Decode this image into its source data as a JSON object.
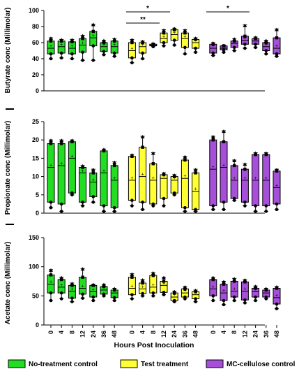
{
  "colors": {
    "no_treatment": "#22dd22",
    "test_treatment": "#ffff33",
    "mc_cellulose": "#a64fd8",
    "ink": "#000000"
  },
  "legend": {
    "items": [
      {
        "label": "No-treatment control",
        "color_key": "no_treatment"
      },
      {
        "label": "Test treatment",
        "color_key": "test_treatment"
      },
      {
        "label": "MC-cellulose control",
        "color_key": "mc_cellulose"
      }
    ]
  },
  "xaxis": {
    "label": "Hours Post Inoculation",
    "tick_labels": [
      "0",
      "4",
      "8",
      "12",
      "24",
      "36",
      "48",
      "0",
      "4",
      "8",
      "12",
      "24",
      "36",
      "48",
      "0",
      "4",
      "8",
      "12",
      "24",
      "36",
      "48"
    ]
  },
  "chart_data": [
    {
      "type": "box",
      "ylabel": "Butyrate conc (Millimolar)",
      "ylim": [
        0,
        100
      ],
      "yticks": [
        0,
        20,
        40,
        60,
        80,
        100
      ],
      "significance": [
        {
          "label": "*",
          "from": "Test treatment 0 h",
          "to": "Test treatment 24 h"
        },
        {
          "label": "**",
          "from": "Test treatment 0 h",
          "to": "Test treatment 12 h"
        },
        {
          "label": "*",
          "from": "MC-cellulose control 0 h",
          "to": "MC-cellulose control 24 h"
        }
      ],
      "groups": [
        {
          "group": "No-treatment control",
          "color_key": "no_treatment",
          "boxes": [
            {
              "x": "0",
              "min": 40,
              "q1": 46,
              "median": 53,
              "q3": 62,
              "max": 66
            },
            {
              "x": "4",
              "min": 41,
              "q1": 47,
              "median": 55,
              "q3": 62,
              "max": 64
            },
            {
              "x": "8",
              "min": 40,
              "q1": 46,
              "median": 53,
              "q3": 61,
              "max": 64
            },
            {
              "x": "12",
              "min": 38,
              "q1": 48,
              "median": 57,
              "q3": 65,
              "max": 69
            },
            {
              "x": "24",
              "min": 38,
              "q1": 56,
              "median": 66,
              "q3": 74,
              "max": 83
            },
            {
              "x": "36",
              "min": 45,
              "q1": 49,
              "median": 55,
              "q3": 60,
              "max": 63
            },
            {
              "x": "48",
              "min": 43,
              "q1": 47,
              "median": 55,
              "q3": 62,
              "max": 65
            }
          ]
        },
        {
          "group": "Test treatment",
          "color_key": "test_treatment",
          "boxes": [
            {
              "x": "0",
              "min": 35,
              "q1": 41,
              "median": 50,
              "q3": 60,
              "max": 64
            },
            {
              "x": "4",
              "min": 40,
              "q1": 47,
              "median": 55,
              "q3": 60,
              "max": 62
            },
            {
              "x": "8",
              "min": 55,
              "q1": 56,
              "median": 57,
              "q3": 58,
              "max": 59
            },
            {
              "x": "12",
              "min": 56,
              "q1": 60,
              "median": 65,
              "q3": 72,
              "max": 76
            },
            {
              "x": "24",
              "min": 57,
              "q1": 63,
              "median": 70,
              "q3": 76,
              "max": 78
            },
            {
              "x": "36",
              "min": 46,
              "q1": 54,
              "median": 65,
              "q3": 72,
              "max": 76
            },
            {
              "x": "48",
              "min": 48,
              "q1": 53,
              "median": 60,
              "q3": 64,
              "max": 66
            }
          ]
        },
        {
          "group": "MC-cellulose control",
          "color_key": "mc_cellulose",
          "boxes": [
            {
              "x": "0",
              "min": 44,
              "q1": 47,
              "median": 53,
              "q3": 58,
              "max": 60
            },
            {
              "x": "4",
              "min": 48,
              "q1": 51,
              "median": 53,
              "q3": 56,
              "max": 57
            },
            {
              "x": "8",
              "min": 50,
              "q1": 54,
              "median": 59,
              "q3": 62,
              "max": 65
            },
            {
              "x": "12",
              "min": 53,
              "q1": 58,
              "median": 63,
              "q3": 68,
              "max": 82
            },
            {
              "x": "24",
              "min": 54,
              "q1": 58,
              "median": 62,
              "q3": 65,
              "max": 67
            },
            {
              "x": "36",
              "min": 46,
              "q1": 50,
              "median": 55,
              "q3": 60,
              "max": 63
            },
            {
              "x": "48",
              "min": 43,
              "q1": 46,
              "median": 53,
              "q3": 66,
              "max": 77
            }
          ]
        }
      ]
    },
    {
      "type": "box",
      "ylabel": "Propionate conc (Millimolar)",
      "ylim": [
        0,
        25
      ],
      "yticks": [
        0,
        5,
        10,
        15,
        20,
        25
      ],
      "groups": [
        {
          "group": "No-treatment control",
          "color_key": "no_treatment",
          "boxes": [
            {
              "x": "0",
              "min": 1.5,
              "q1": 3.0,
              "median": 12.5,
              "q3": 19.0,
              "max": 20.0
            },
            {
              "x": "4",
              "min": 0.5,
              "q1": 2.5,
              "median": 13.0,
              "q3": 19.0,
              "max": 20.0
            },
            {
              "x": "8",
              "min": 5.0,
              "q1": 5.5,
              "median": 15.0,
              "q3": 19.5,
              "max": 20.0
            },
            {
              "x": "12",
              "min": 2.0,
              "q1": 3.0,
              "median": 11.0,
              "q3": 12.5,
              "max": 13.0
            },
            {
              "x": "24",
              "min": 3.0,
              "q1": 4.5,
              "median": 8.5,
              "q3": 11.0,
              "max": 12.0
            },
            {
              "x": "36",
              "min": 0.5,
              "q1": 2.0,
              "median": 11.0,
              "q3": 17.0,
              "max": 17.5
            },
            {
              "x": "48",
              "min": 0.5,
              "q1": 1.5,
              "median": 9.0,
              "q3": 13.0,
              "max": 14.0
            }
          ]
        },
        {
          "group": "Test treatment",
          "color_key": "test_treatment",
          "boxes": [
            {
              "x": "0",
              "min": 2.0,
              "q1": 3.5,
              "median": 9.0,
              "q3": 15.5,
              "max": 16.0
            },
            {
              "x": "4",
              "min": 1.0,
              "q1": 3.0,
              "median": 10.0,
              "q3": 18.0,
              "max": 21.0
            },
            {
              "x": "8",
              "min": 2.0,
              "q1": 2.5,
              "median": 9.0,
              "q3": 13.5,
              "max": 16.5
            },
            {
              "x": "12",
              "min": 2.0,
              "q1": 4.0,
              "median": 9.5,
              "q3": 10.5,
              "max": 11.0
            },
            {
              "x": "24",
              "min": 5.0,
              "q1": 5.5,
              "median": 9.0,
              "q3": 10.0,
              "max": 10.5
            },
            {
              "x": "36",
              "min": 0.5,
              "q1": 1.5,
              "median": 9.5,
              "q3": 14.5,
              "max": 15.5
            },
            {
              "x": "48",
              "min": 0.5,
              "q1": 1.0,
              "median": 6.0,
              "q3": 11.0,
              "max": 12.0
            }
          ]
        },
        {
          "group": "MC-cellulose control",
          "color_key": "mc_cellulose",
          "boxes": [
            {
              "x": "0",
              "min": 1.0,
              "q1": 2.0,
              "median": 12.0,
              "q3": 20.0,
              "max": 21.0
            },
            {
              "x": "4",
              "min": 1.0,
              "q1": 3.0,
              "median": 12.5,
              "q3": 19.5,
              "max": 22.5
            },
            {
              "x": "8",
              "min": 3.5,
              "q1": 4.0,
              "median": 9.0,
              "q3": 13.0,
              "max": 14.5
            },
            {
              "x": "12",
              "min": 2.0,
              "q1": 3.0,
              "median": 9.0,
              "q3": 12.0,
              "max": 13.5
            },
            {
              "x": "24",
              "min": 0.5,
              "q1": 2.0,
              "median": 9.0,
              "q3": 16.0,
              "max": 16.5
            },
            {
              "x": "36",
              "min": 0.5,
              "q1": 2.0,
              "median": 9.0,
              "q3": 16.0,
              "max": 16.5
            },
            {
              "x": "48",
              "min": 1.0,
              "q1": 2.5,
              "median": 7.0,
              "q3": 11.5,
              "max": 12.0
            }
          ]
        }
      ]
    },
    {
      "type": "box",
      "ylabel": "Acetate conc (Millimolar)",
      "ylim": [
        0,
        150
      ],
      "yticks": [
        0,
        50,
        100,
        150
      ],
      "groups": [
        {
          "group": "No-treatment control",
          "color_key": "no_treatment",
          "boxes": [
            {
              "x": "0",
              "min": 42,
              "q1": 55,
              "median": 70,
              "q3": 86,
              "max": 95
            },
            {
              "x": "4",
              "min": 45,
              "q1": 55,
              "median": 65,
              "q3": 78,
              "max": 82
            },
            {
              "x": "8",
              "min": 40,
              "q1": 46,
              "median": 58,
              "q3": 68,
              "max": 72
            },
            {
              "x": "12",
              "min": 46,
              "q1": 53,
              "median": 63,
              "q3": 82,
              "max": 97
            },
            {
              "x": "24",
              "min": 42,
              "q1": 48,
              "median": 57,
              "q3": 68,
              "max": 70
            },
            {
              "x": "36",
              "min": 50,
              "q1": 53,
              "median": 60,
              "q3": 66,
              "max": 70
            },
            {
              "x": "48",
              "min": 42,
              "q1": 47,
              "median": 55,
              "q3": 60,
              "max": 63
            }
          ]
        },
        {
          "group": "Test treatment",
          "color_key": "test_treatment",
          "boxes": [
            {
              "x": "0",
              "min": 45,
              "q1": 52,
              "median": 63,
              "q3": 82,
              "max": 88
            },
            {
              "x": "4",
              "min": 50,
              "q1": 54,
              "median": 62,
              "q3": 72,
              "max": 78
            },
            {
              "x": "8",
              "min": 50,
              "q1": 55,
              "median": 65,
              "q3": 85,
              "max": 90
            },
            {
              "x": "12",
              "min": 52,
              "q1": 56,
              "median": 68,
              "q3": 75,
              "max": 82
            },
            {
              "x": "24",
              "min": 40,
              "q1": 42,
              "median": 48,
              "q3": 55,
              "max": 58
            },
            {
              "x": "36",
              "min": 45,
              "q1": 48,
              "median": 55,
              "q3": 62,
              "max": 66
            },
            {
              "x": "48",
              "min": 40,
              "q1": 45,
              "median": 52,
              "q3": 57,
              "max": 60
            }
          ]
        },
        {
          "group": "MC-cellulose control",
          "color_key": "mc_cellulose",
          "boxes": [
            {
              "x": "0",
              "min": 42,
              "q1": 50,
              "median": 62,
              "q3": 78,
              "max": 82
            },
            {
              "x": "4",
              "min": 35,
              "q1": 42,
              "median": 55,
              "q3": 70,
              "max": 75
            },
            {
              "x": "8",
              "min": 42,
              "q1": 48,
              "median": 58,
              "q3": 75,
              "max": 80
            },
            {
              "x": "12",
              "min": 38,
              "q1": 43,
              "median": 58,
              "q3": 74,
              "max": 78
            },
            {
              "x": "24",
              "min": 42,
              "q1": 48,
              "median": 57,
              "q3": 63,
              "max": 67
            },
            {
              "x": "36",
              "min": 45,
              "q1": 48,
              "median": 55,
              "q3": 60,
              "max": 63
            },
            {
              "x": "48",
              "min": 28,
              "q1": 36,
              "median": 47,
              "q3": 63,
              "max": 66
            }
          ]
        }
      ]
    }
  ]
}
